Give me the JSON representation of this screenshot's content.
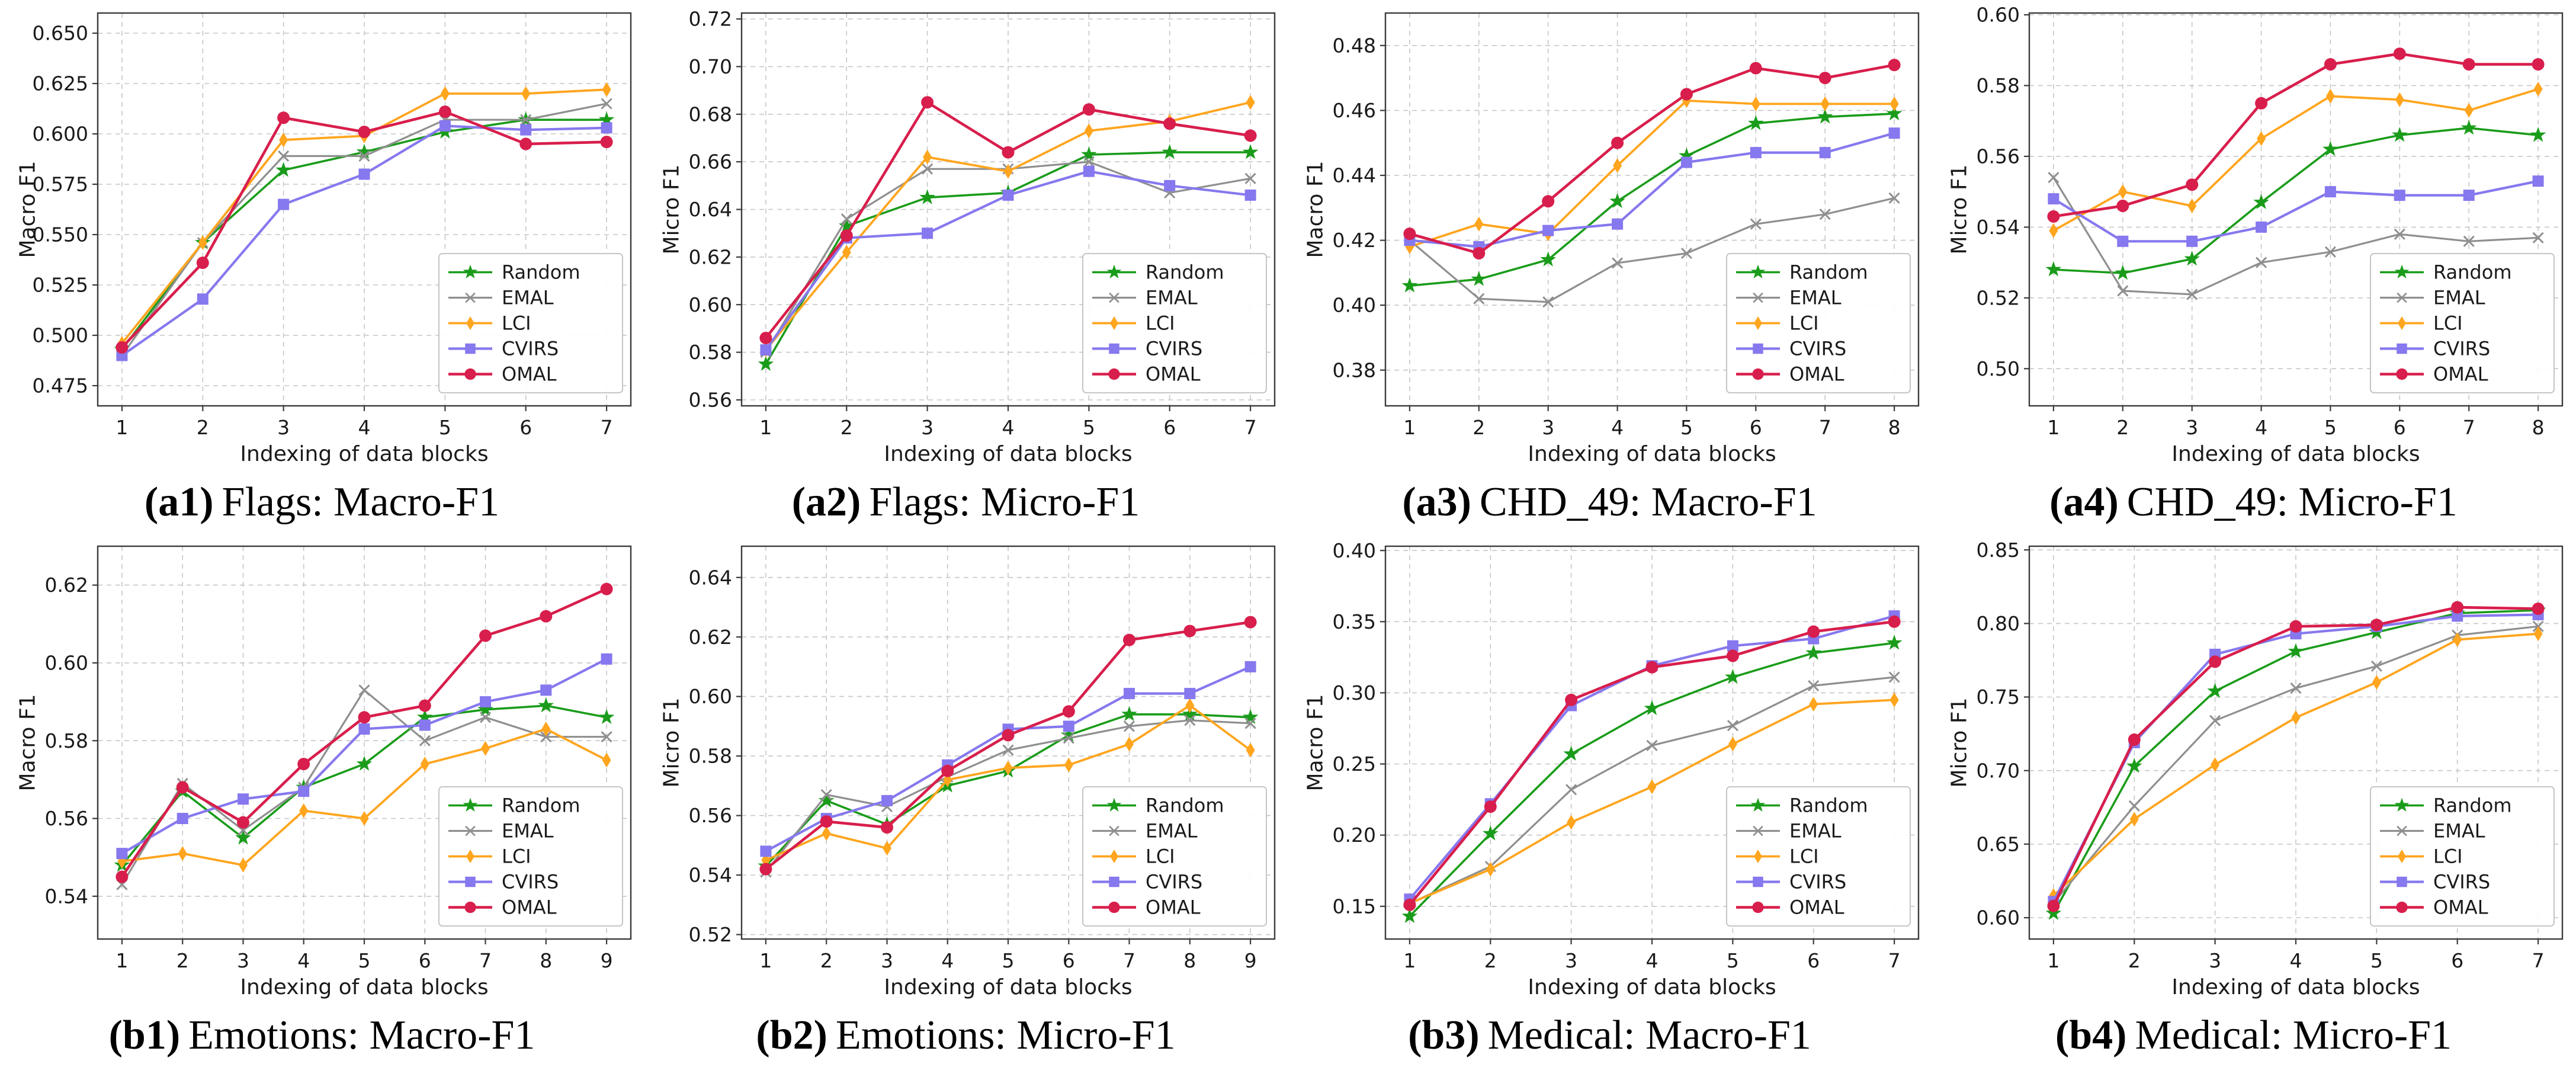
{
  "page": {
    "background": "#ffffff"
  },
  "axis": {
    "xlabel": "Indexing of data blocks",
    "grid_color": "#c6c6c6",
    "box_color": "#3b3b3b",
    "text_color": "#1a1a1a"
  },
  "legend": {
    "entries": [
      "Random",
      "EMAL",
      "LCI",
      "CVIRS",
      "OMAL"
    ],
    "position": "lower-right"
  },
  "series_styles": [
    {
      "name": "Random",
      "color": "#1a9c1a",
      "marker": "star",
      "line_width": 3.6
    },
    {
      "name": "EMAL",
      "color": "#8f8f8f",
      "marker": "x",
      "line_width": 3.2
    },
    {
      "name": "LCI",
      "color": "#ffa51e",
      "marker": "diamond",
      "line_width": 3.8
    },
    {
      "name": "CVIRS",
      "color": "#8678ee",
      "marker": "square",
      "line_width": 4.2
    },
    {
      "name": "OMAL",
      "color": "#d81e4c",
      "marker": "circle",
      "line_width": 4.6
    }
  ],
  "chart_data": [
    {
      "id": "a1",
      "type": "line",
      "caption": {
        "tag": "(a1)",
        "text": "Flags: Macro-F1"
      },
      "ylabel": "Macro F1",
      "xlabel": "Indexing of data blocks",
      "x": [
        1,
        2,
        3,
        4,
        5,
        6,
        7
      ],
      "xlim": [
        0.7,
        7.3
      ],
      "ylim": [
        0.465,
        0.66
      ],
      "yticks": [
        0.475,
        0.5,
        0.525,
        0.55,
        0.575,
        0.6,
        0.625,
        0.65
      ],
      "ytick_labels": [
        "0.475",
        "0.500",
        "0.525",
        "0.550",
        "0.575",
        "0.600",
        "0.625",
        "0.650"
      ],
      "grid": true,
      "legend_position": "lower-right",
      "series": [
        {
          "name": "Random",
          "values": [
            0.493,
            0.546,
            0.582,
            0.591,
            0.601,
            0.607,
            0.607
          ]
        },
        {
          "name": "EMAL",
          "values": [
            0.49,
            0.546,
            0.589,
            0.589,
            0.607,
            0.607,
            0.615
          ]
        },
        {
          "name": "LCI",
          "values": [
            0.496,
            0.546,
            0.597,
            0.599,
            0.62,
            0.62,
            0.622
          ]
        },
        {
          "name": "CVIRS",
          "values": [
            0.49,
            0.518,
            0.565,
            0.58,
            0.604,
            0.602,
            0.603
          ]
        },
        {
          "name": "OMAL",
          "values": [
            0.494,
            0.536,
            0.608,
            0.601,
            0.611,
            0.595,
            0.596
          ]
        }
      ]
    },
    {
      "id": "a2",
      "type": "line",
      "caption": {
        "tag": "(a2)",
        "text": "Flags: Micro-F1"
      },
      "ylabel": "Micro F1",
      "xlabel": "Indexing of data blocks",
      "x": [
        1,
        2,
        3,
        4,
        5,
        6,
        7
      ],
      "xlim": [
        0.7,
        7.3
      ],
      "ylim": [
        0.5575,
        0.7225
      ],
      "yticks": [
        0.56,
        0.58,
        0.6,
        0.62,
        0.64,
        0.66,
        0.68,
        0.7,
        0.72
      ],
      "ytick_labels": [
        "0.56",
        "0.58",
        "0.60",
        "0.62",
        "0.64",
        "0.66",
        "0.68",
        "0.70",
        "0.72"
      ],
      "grid": true,
      "legend_position": "lower-right",
      "series": [
        {
          "name": "Random",
          "values": [
            0.575,
            0.633,
            0.645,
            0.647,
            0.663,
            0.664,
            0.664
          ]
        },
        {
          "name": "EMAL",
          "values": [
            0.58,
            0.636,
            0.657,
            0.657,
            0.66,
            0.647,
            0.653
          ]
        },
        {
          "name": "LCI",
          "values": [
            0.581,
            0.622,
            0.662,
            0.656,
            0.673,
            0.677,
            0.685
          ]
        },
        {
          "name": "CVIRS",
          "values": [
            0.581,
            0.628,
            0.63,
            0.646,
            0.656,
            0.65,
            0.646
          ]
        },
        {
          "name": "OMAL",
          "values": [
            0.586,
            0.629,
            0.685,
            0.664,
            0.682,
            0.676,
            0.671
          ]
        }
      ]
    },
    {
      "id": "a3",
      "type": "line",
      "caption": {
        "tag": "(a3)",
        "text": "CHD_49: Macro-F1"
      },
      "ylabel": "Macro F1",
      "xlabel": "Indexing of data blocks",
      "x": [
        1,
        2,
        3,
        4,
        5,
        6,
        7,
        8
      ],
      "xlim": [
        0.65,
        8.35
      ],
      "ylim": [
        0.369,
        0.49
      ],
      "yticks": [
        0.38,
        0.4,
        0.42,
        0.44,
        0.46,
        0.48
      ],
      "ytick_labels": [
        "0.38",
        "0.40",
        "0.42",
        "0.44",
        "0.46",
        "0.48"
      ],
      "grid": true,
      "legend_position": "lower-right",
      "series": [
        {
          "name": "Random",
          "values": [
            0.406,
            0.408,
            0.414,
            0.432,
            0.446,
            0.456,
            0.458,
            0.459
          ]
        },
        {
          "name": "EMAL",
          "values": [
            0.42,
            0.402,
            0.401,
            0.413,
            0.416,
            0.425,
            0.428,
            0.433
          ]
        },
        {
          "name": "LCI",
          "values": [
            0.418,
            0.425,
            0.422,
            0.443,
            0.463,
            0.462,
            0.462,
            0.462
          ]
        },
        {
          "name": "CVIRS",
          "values": [
            0.42,
            0.418,
            0.423,
            0.425,
            0.444,
            0.447,
            0.447,
            0.453
          ]
        },
        {
          "name": "OMAL",
          "values": [
            0.422,
            0.416,
            0.432,
            0.45,
            0.465,
            0.473,
            0.47,
            0.474
          ]
        }
      ]
    },
    {
      "id": "a4",
      "type": "line",
      "caption": {
        "tag": "(a4)",
        "text": "CHD_49: Micro-F1"
      },
      "ylabel": "Micro F1",
      "xlabel": "Indexing of data blocks",
      "x": [
        1,
        2,
        3,
        4,
        5,
        6,
        7,
        8
      ],
      "xlim": [
        0.65,
        8.35
      ],
      "ylim": [
        0.4895,
        0.6005
      ],
      "yticks": [
        0.5,
        0.52,
        0.54,
        0.56,
        0.58,
        0.6
      ],
      "ytick_labels": [
        "0.50",
        "0.52",
        "0.54",
        "0.56",
        "0.58",
        "0.60"
      ],
      "grid": true,
      "legend_position": "lower-right",
      "series": [
        {
          "name": "Random",
          "values": [
            0.528,
            0.527,
            0.531,
            0.547,
            0.562,
            0.566,
            0.568,
            0.566
          ]
        },
        {
          "name": "EMAL",
          "values": [
            0.554,
            0.522,
            0.521,
            0.53,
            0.533,
            0.538,
            0.536,
            0.537
          ]
        },
        {
          "name": "LCI",
          "values": [
            0.539,
            0.55,
            0.546,
            0.565,
            0.577,
            0.576,
            0.573,
            0.579
          ]
        },
        {
          "name": "CVIRS",
          "values": [
            0.548,
            0.536,
            0.536,
            0.54,
            0.55,
            0.549,
            0.549,
            0.553
          ]
        },
        {
          "name": "OMAL",
          "values": [
            0.543,
            0.546,
            0.552,
            0.575,
            0.586,
            0.589,
            0.586,
            0.586
          ]
        }
      ]
    },
    {
      "id": "b1",
      "type": "line",
      "caption": {
        "tag": "(b1)",
        "text": "Emotions: Macro-F1"
      },
      "ylabel": "Macro F1",
      "xlabel": "Indexing of data blocks",
      "x": [
        1,
        2,
        3,
        4,
        5,
        6,
        7,
        8,
        9
      ],
      "xlim": [
        0.6,
        9.4
      ],
      "ylim": [
        0.529,
        0.63
      ],
      "yticks": [
        0.54,
        0.56,
        0.58,
        0.6,
        0.62
      ],
      "ytick_labels": [
        "0.54",
        "0.56",
        "0.58",
        "0.60",
        "0.62"
      ],
      "grid": true,
      "legend_position": "lower-right",
      "series": [
        {
          "name": "Random",
          "values": [
            0.548,
            0.567,
            0.555,
            0.568,
            0.574,
            0.586,
            0.588,
            0.589,
            0.586
          ]
        },
        {
          "name": "EMAL",
          "values": [
            0.543,
            0.569,
            0.557,
            0.568,
            0.593,
            0.58,
            0.586,
            0.581,
            0.581
          ]
        },
        {
          "name": "LCI",
          "values": [
            0.549,
            0.551,
            0.548,
            0.562,
            0.56,
            0.574,
            0.578,
            0.583,
            0.575
          ]
        },
        {
          "name": "CVIRS",
          "values": [
            0.551,
            0.56,
            0.565,
            0.567,
            0.583,
            0.584,
            0.59,
            0.593,
            0.601
          ]
        },
        {
          "name": "OMAL",
          "values": [
            0.545,
            0.568,
            0.559,
            0.574,
            0.586,
            0.589,
            0.607,
            0.612,
            0.619
          ]
        }
      ]
    },
    {
      "id": "b2",
      "type": "line",
      "caption": {
        "tag": "(b2)",
        "text": "Emotions: Micro-F1"
      },
      "ylabel": "Micro F1",
      "xlabel": "Indexing of data blocks",
      "x": [
        1,
        2,
        3,
        4,
        5,
        6,
        7,
        8,
        9
      ],
      "xlim": [
        0.6,
        9.4
      ],
      "ylim": [
        0.5185,
        0.6505
      ],
      "yticks": [
        0.52,
        0.54,
        0.56,
        0.58,
        0.6,
        0.62,
        0.64
      ],
      "ytick_labels": [
        "0.52",
        "0.54",
        "0.56",
        "0.58",
        "0.60",
        "0.62",
        "0.64"
      ],
      "grid": true,
      "legend_position": "lower-right",
      "series": [
        {
          "name": "Random",
          "values": [
            0.543,
            0.565,
            0.557,
            0.57,
            0.575,
            0.587,
            0.594,
            0.594,
            0.593
          ]
        },
        {
          "name": "EMAL",
          "values": [
            0.541,
            0.567,
            0.563,
            0.573,
            0.582,
            0.586,
            0.59,
            0.592,
            0.591
          ]
        },
        {
          "name": "LCI",
          "values": [
            0.545,
            0.554,
            0.549,
            0.572,
            0.576,
            0.577,
            0.584,
            0.597,
            0.582
          ]
        },
        {
          "name": "CVIRS",
          "values": [
            0.548,
            0.559,
            0.565,
            0.577,
            0.589,
            0.59,
            0.601,
            0.601,
            0.61
          ]
        },
        {
          "name": "OMAL",
          "values": [
            0.542,
            0.558,
            0.556,
            0.575,
            0.587,
            0.595,
            0.619,
            0.622,
            0.625
          ]
        }
      ]
    },
    {
      "id": "b3",
      "type": "line",
      "caption": {
        "tag": "(b3)",
        "text": "Medical: Macro-F1"
      },
      "ylabel": "Macro F1",
      "xlabel": "Indexing of data blocks",
      "x": [
        1,
        2,
        3,
        4,
        5,
        6,
        7
      ],
      "xlim": [
        0.7,
        7.3
      ],
      "ylim": [
        0.127,
        0.403
      ],
      "yticks": [
        0.15,
        0.2,
        0.25,
        0.3,
        0.35,
        0.4
      ],
      "ytick_labels": [
        "0.15",
        "0.20",
        "0.25",
        "0.30",
        "0.35",
        "0.40"
      ],
      "grid": true,
      "legend_position": "lower-right",
      "series": [
        {
          "name": "Random",
          "values": [
            0.143,
            0.201,
            0.257,
            0.289,
            0.311,
            0.328,
            0.335
          ]
        },
        {
          "name": "EMAL",
          "values": [
            0.152,
            0.178,
            0.232,
            0.263,
            0.277,
            0.305,
            0.311
          ]
        },
        {
          "name": "LCI",
          "values": [
            0.152,
            0.176,
            0.209,
            0.234,
            0.264,
            0.292,
            0.295
          ]
        },
        {
          "name": "CVIRS",
          "values": [
            0.155,
            0.222,
            0.291,
            0.319,
            0.333,
            0.338,
            0.354
          ]
        },
        {
          "name": "OMAL",
          "values": [
            0.151,
            0.22,
            0.295,
            0.318,
            0.326,
            0.343,
            0.35
          ]
        }
      ]
    },
    {
      "id": "b4",
      "type": "line",
      "caption": {
        "tag": "(b4)",
        "text": "Medical: Micro-F1"
      },
      "ylabel": "Micro F1",
      "xlabel": "Indexing of data blocks",
      "x": [
        1,
        2,
        3,
        4,
        5,
        6,
        7
      ],
      "xlim": [
        0.7,
        7.3
      ],
      "ylim": [
        0.5855,
        0.8525
      ],
      "yticks": [
        0.6,
        0.65,
        0.7,
        0.75,
        0.8,
        0.85
      ],
      "ytick_labels": [
        "0.60",
        "0.65",
        "0.70",
        "0.75",
        "0.80",
        "0.85"
      ],
      "grid": true,
      "legend_position": "lower-right",
      "series": [
        {
          "name": "Random",
          "values": [
            0.603,
            0.703,
            0.754,
            0.781,
            0.794,
            0.807,
            0.809
          ]
        },
        {
          "name": "EMAL",
          "values": [
            0.61,
            0.676,
            0.734,
            0.756,
            0.771,
            0.792,
            0.798
          ]
        },
        {
          "name": "LCI",
          "values": [
            0.615,
            0.667,
            0.704,
            0.736,
            0.76,
            0.789,
            0.793
          ]
        },
        {
          "name": "CVIRS",
          "values": [
            0.611,
            0.719,
            0.779,
            0.793,
            0.798,
            0.805,
            0.806
          ]
        },
        {
          "name": "OMAL",
          "values": [
            0.608,
            0.721,
            0.774,
            0.798,
            0.799,
            0.811,
            0.81
          ]
        }
      ]
    }
  ]
}
